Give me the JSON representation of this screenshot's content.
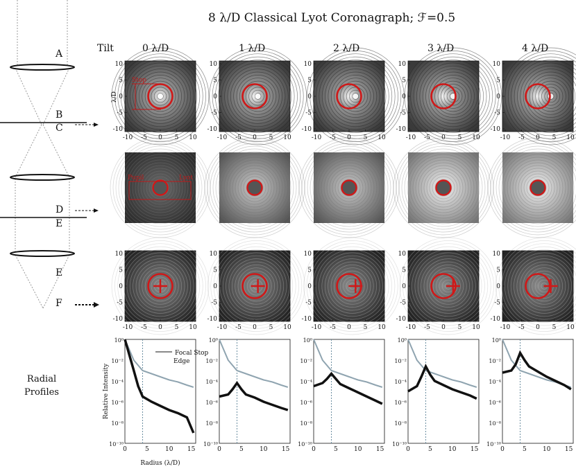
{
  "figure": {
    "title": "8 λ/D Classical Lyot Coronagraph; ℱ=0.5",
    "tilt_label": "Tilt",
    "tilts": [
      "0 λ/D",
      "1 λ/D",
      "2 λ/D",
      "3 λ/D",
      "4 λ/D"
    ],
    "tilt_values": [
      0,
      1,
      2,
      3,
      4
    ],
    "optical_labels": {
      "A": "A",
      "B": "B",
      "C": "C",
      "D": "D",
      "E1": "E",
      "E2": "E",
      "F": "F"
    },
    "radial_label_line1": "Radial",
    "radial_label_line2": "Profiles",
    "annotations": {
      "stop": "Stop",
      "pupil": "Pupil",
      "lyot": "Lyot",
      "focal_stop_line1": "Focal Stop",
      "focal_stop_line2": "Edge"
    },
    "image_ticks": [
      "10",
      "5",
      "0",
      "-5",
      "-10"
    ],
    "image_xticks": [
      "-10",
      "-5",
      "0",
      "5",
      "10"
    ],
    "image_ylabel": "λ/D",
    "colors": {
      "circle": "#d01818",
      "gray_curve": "#8fa4b0",
      "dashed": "#6a8da0"
    }
  },
  "chart_data": {
    "type": "line",
    "title": "Radial Profiles",
    "xlabel": "Radius (λ/D)",
    "ylabel": "Relative Intensity",
    "xlim": [
      0,
      16
    ],
    "xticks": [
      "0",
      "5",
      "10",
      "15"
    ],
    "ylog_ticks": [
      "10⁰",
      "10⁻²",
      "10⁻⁴",
      "10⁻⁶",
      "10⁻⁸",
      "10⁻¹⁰"
    ],
    "ylim_exp": [
      -10,
      0
    ],
    "focal_stop_radius": 4,
    "panels": [
      {
        "tilt": "0 λ/D",
        "series": [
          {
            "name": "gray",
            "x": [
              0,
              1,
              2,
              4,
              6,
              8,
              10,
              12,
              14,
              15.5
            ],
            "y_exp": [
              0,
              -1,
              -2,
              -3,
              -3.3,
              -3.6,
              -3.9,
              -4.1,
              -4.4,
              -4.6
            ]
          },
          {
            "name": "black",
            "x": [
              0,
              1,
              2,
              3,
              4,
              6,
              8,
              10,
              12,
              14,
              15.5
            ],
            "y_exp": [
              0,
              -1.5,
              -3,
              -4.5,
              -5.5,
              -6,
              -6.4,
              -6.8,
              -7.1,
              -7.5,
              -9
            ]
          }
        ]
      },
      {
        "tilt": "1 λ/D",
        "series": [
          {
            "name": "gray",
            "x": [
              0,
              1,
              2,
              4,
              6,
              8,
              10,
              12,
              14,
              15.5
            ],
            "y_exp": [
              0,
              -1,
              -2,
              -3,
              -3.3,
              -3.6,
              -3.9,
              -4.1,
              -4.4,
              -4.6
            ]
          },
          {
            "name": "black",
            "x": [
              0,
              2,
              3,
              4,
              5,
              6,
              8,
              10,
              12,
              14,
              15.5
            ],
            "y_exp": [
              -5.5,
              -5.3,
              -4.8,
              -4.2,
              -4.8,
              -5.3,
              -5.6,
              -6.0,
              -6.3,
              -6.6,
              -6.8
            ]
          }
        ]
      },
      {
        "tilt": "2 λ/D",
        "series": [
          {
            "name": "gray",
            "x": [
              0,
              1,
              2,
              4,
              6,
              8,
              10,
              12,
              14,
              15.5
            ],
            "y_exp": [
              0,
              -1,
              -2,
              -3,
              -3.3,
              -3.6,
              -3.9,
              -4.1,
              -4.4,
              -4.6
            ]
          },
          {
            "name": "black",
            "x": [
              0,
              2,
              3,
              4,
              5,
              6,
              8,
              10,
              12,
              14,
              15.5
            ],
            "y_exp": [
              -4.5,
              -4.2,
              -3.8,
              -3.3,
              -3.8,
              -4.3,
              -4.7,
              -5.1,
              -5.5,
              -5.9,
              -6.2
            ]
          }
        ]
      },
      {
        "tilt": "3 λ/D",
        "series": [
          {
            "name": "gray",
            "x": [
              0,
              1,
              2,
              4,
              6,
              8,
              10,
              12,
              14,
              15.5
            ],
            "y_exp": [
              0,
              -1,
              -2,
              -3,
              -3.3,
              -3.6,
              -3.9,
              -4.1,
              -4.4,
              -4.6
            ]
          },
          {
            "name": "black",
            "x": [
              0,
              2,
              3,
              4,
              5,
              6,
              8,
              10,
              12,
              14,
              15.5
            ],
            "y_exp": [
              -5.0,
              -4.5,
              -3.6,
              -2.6,
              -3.4,
              -4.0,
              -4.4,
              -4.8,
              -5.1,
              -5.4,
              -5.7
            ]
          }
        ]
      },
      {
        "tilt": "4 λ/D",
        "series": [
          {
            "name": "gray",
            "x": [
              0,
              1,
              2,
              4,
              6,
              8,
              10,
              12,
              14,
              15.5
            ],
            "y_exp": [
              0,
              -1,
              -2,
              -3,
              -3.3,
              -3.6,
              -3.9,
              -4.1,
              -4.4,
              -4.6
            ]
          },
          {
            "name": "black",
            "x": [
              0,
              2,
              3,
              4,
              5,
              6,
              8,
              10,
              12,
              14,
              15.5
            ],
            "y_exp": [
              -3.2,
              -3.0,
              -2.4,
              -1.3,
              -2.0,
              -2.6,
              -3.1,
              -3.6,
              -4.0,
              -4.4,
              -4.8
            ]
          }
        ]
      }
    ]
  }
}
